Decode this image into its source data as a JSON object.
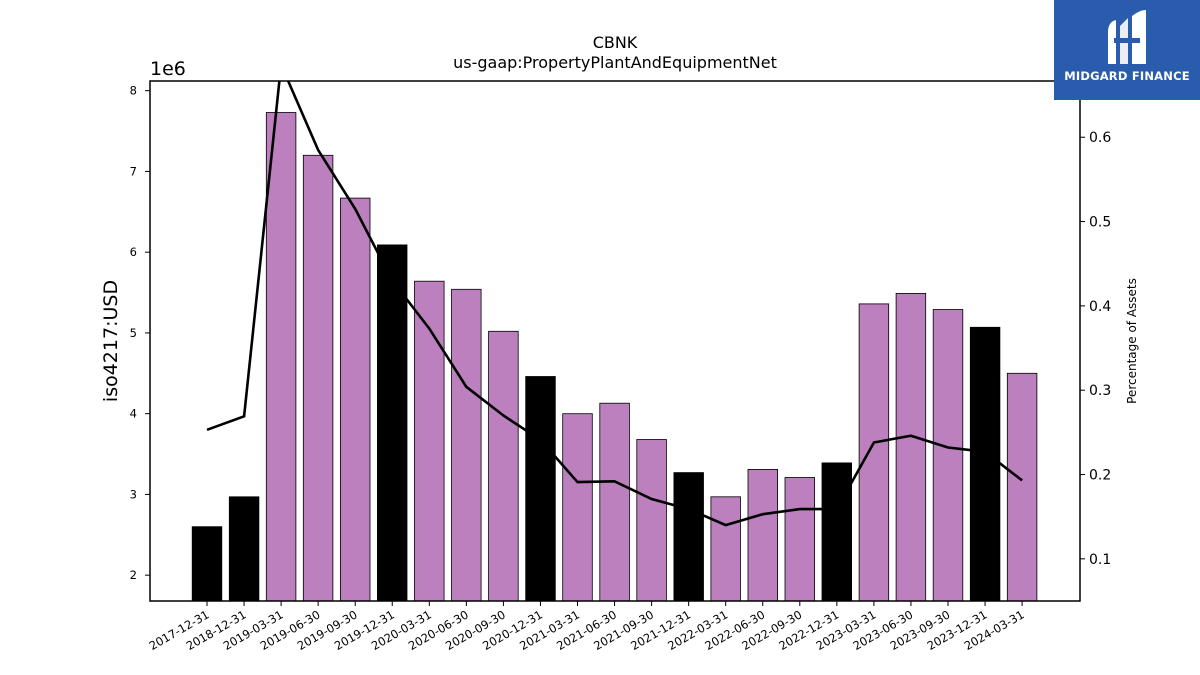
{
  "chart_data": {
    "type": "bar",
    "title": "CBNK",
    "subtitle": "us-gaap:PropertyPlantAndEquipmentNet",
    "ylabel": "iso4217:USD",
    "y_offset_label": "1e6",
    "y2label": "Percentage of Assets",
    "ylim": [
      1.68,
      8.12
    ],
    "y2lim": [
      0.05,
      0.6667
    ],
    "yticks": [
      "2",
      "3",
      "4",
      "5",
      "6",
      "7",
      "8"
    ],
    "y2ticks": [
      "0.1",
      "0.2",
      "0.3",
      "0.4",
      "0.5",
      "0.6"
    ],
    "categories": [
      "2017-12-31",
      "2018-12-31",
      "2019-03-31",
      "2019-06-30",
      "2019-09-30",
      "2019-12-31",
      "2020-03-31",
      "2020-06-30",
      "2020-09-30",
      "2020-12-31",
      "2021-03-31",
      "2021-06-30",
      "2021-09-30",
      "2021-12-31",
      "2022-03-31",
      "2022-06-30",
      "2022-09-30",
      "2022-12-31",
      "2023-03-31",
      "2023-06-30",
      "2023-09-30",
      "2023-12-31",
      "2024-03-31"
    ],
    "values": [
      2.6,
      2.97,
      7.73,
      7.2,
      6.67,
      6.09,
      5.64,
      5.54,
      5.02,
      4.46,
      4.0,
      4.13,
      3.68,
      3.27,
      2.97,
      3.31,
      3.21,
      3.39,
      5.36,
      5.49,
      5.29,
      5.07,
      4.5
    ],
    "bar_colors": [
      "#000000",
      "#000000",
      "#bb80bd",
      "#bb80bd",
      "#bb80bd",
      "#000000",
      "#bb80bd",
      "#bb80bd",
      "#bb80bd",
      "#000000",
      "#bb80bd",
      "#bb80bd",
      "#bb80bd",
      "#000000",
      "#bb80bd",
      "#bb80bd",
      "#bb80bd",
      "#000000",
      "#bb80bd",
      "#bb80bd",
      "#bb80bd",
      "#000000",
      "#bb80bd"
    ],
    "line_values": [
      0.253,
      0.269,
      0.686,
      0.585,
      0.515,
      0.43,
      0.373,
      0.304,
      0.27,
      0.241,
      0.191,
      0.192,
      0.171,
      0.159,
      0.14,
      0.153,
      0.159,
      0.159,
      0.238,
      0.246,
      0.232,
      0.227,
      0.193
    ],
    "line_color": "#000000",
    "grid": false
  },
  "logo": {
    "text": "MIDGARD FINANCE",
    "background": "#2a5cae"
  }
}
